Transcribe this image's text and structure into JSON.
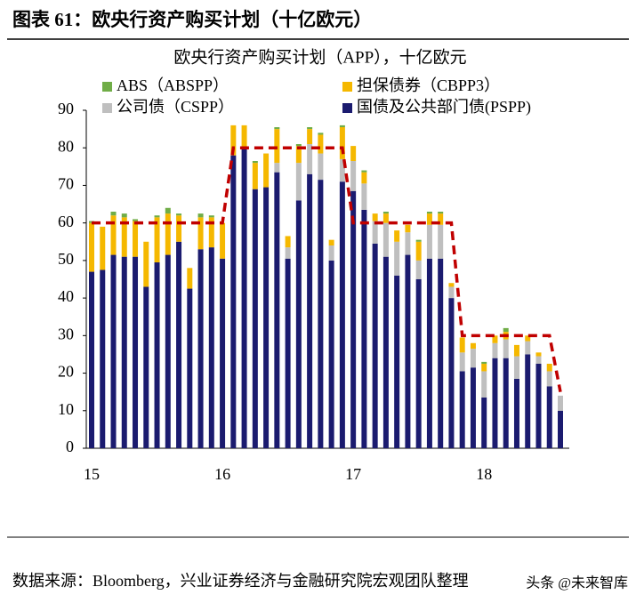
{
  "header": "图表 61：欧央行资产购买计划（十亿欧元）",
  "chart_data": {
    "type": "bar",
    "stacked": true,
    "title": "欧央行资产购买计划（APP），十亿欧元",
    "categories": [
      "15",
      null,
      null,
      null,
      null,
      null,
      null,
      null,
      null,
      null,
      null,
      null,
      "16",
      null,
      null,
      null,
      null,
      null,
      null,
      null,
      null,
      null,
      null,
      null,
      "17",
      null,
      null,
      null,
      null,
      null,
      null,
      null,
      null,
      null,
      null,
      null,
      "18",
      null,
      null,
      null,
      null,
      null,
      null,
      null
    ],
    "series": [
      {
        "name": "国债及公共部门债(PSPP)",
        "color": "#1b1b6f",
        "values": [
          47,
          47.5,
          51.5,
          51,
          51,
          43,
          49.5,
          51.5,
          55,
          42.5,
          53,
          53.5,
          50.5,
          78,
          80,
          69,
          69.5,
          73.5,
          50.5,
          66,
          73,
          71.5,
          50,
          71,
          68.5,
          63.5,
          54.5,
          51,
          46,
          51.5,
          45,
          50.5,
          50.5,
          40,
          20.5,
          21.5,
          13.5,
          24,
          24,
          18.5,
          25,
          22.5,
          16.5,
          10
        ]
      },
      {
        "name": "公司债（CSPP）",
        "color": "#bfbfbf",
        "values": [
          0,
          0,
          0,
          0,
          0,
          0,
          0,
          0,
          0,
          0,
          0,
          0,
          0,
          0,
          0,
          0,
          0,
          2.5,
          3,
          10,
          8,
          7,
          4,
          6,
          8,
          7,
          6,
          9,
          9,
          6,
          5,
          9,
          9,
          3,
          5,
          5,
          7,
          4,
          5,
          6,
          3.5,
          2,
          4,
          4
        ]
      },
      {
        "name": "担保债券（CBPP3）",
        "color": "#f5b800",
        "values": [
          13,
          11.5,
          10.5,
          10.5,
          9.5,
          12,
          12,
          11,
          7,
          5.5,
          8.5,
          8,
          9.5,
          8,
          6,
          7,
          9,
          9,
          3,
          4.5,
          4,
          5,
          1.5,
          8.5,
          4,
          3,
          2,
          2.5,
          3,
          2,
          5,
          3,
          3,
          1,
          4,
          1.5,
          2,
          2,
          2,
          3,
          1.5,
          1,
          2,
          0
        ]
      },
      {
        "name": "ABS（ABSPP）",
        "color": "#70ad47",
        "values": [
          0.5,
          0,
          1,
          1,
          0.5,
          0,
          0.5,
          1.5,
          0.5,
          0,
          1,
          0.5,
          0,
          0,
          0,
          0.5,
          0,
          0.5,
          0,
          0.5,
          0.5,
          0.5,
          0,
          0.5,
          0,
          0.5,
          0,
          0.5,
          0,
          0,
          0.5,
          0.5,
          0.5,
          0,
          0,
          0,
          0.5,
          0,
          1,
          0,
          0,
          0,
          0,
          0
        ]
      }
    ],
    "target_line": {
      "color": "#c00000",
      "values": [
        60,
        60,
        60,
        60,
        60,
        60,
        60,
        60,
        60,
        60,
        60,
        60,
        60,
        80,
        80,
        80,
        80,
        80,
        80,
        80,
        80,
        80,
        80,
        80,
        60,
        60,
        60,
        60,
        60,
        60,
        60,
        60,
        60,
        60,
        30,
        30,
        30,
        30,
        30,
        30,
        30,
        30,
        30,
        15
      ]
    },
    "ylim": [
      0,
      90
    ],
    "yticks": [
      0,
      10,
      20,
      30,
      40,
      50,
      60,
      70,
      80,
      90
    ]
  },
  "source": "数据来源：Bloomberg，兴业证券经济与金融研究院宏观团队整理",
  "watermark": "头条 @未来智库"
}
